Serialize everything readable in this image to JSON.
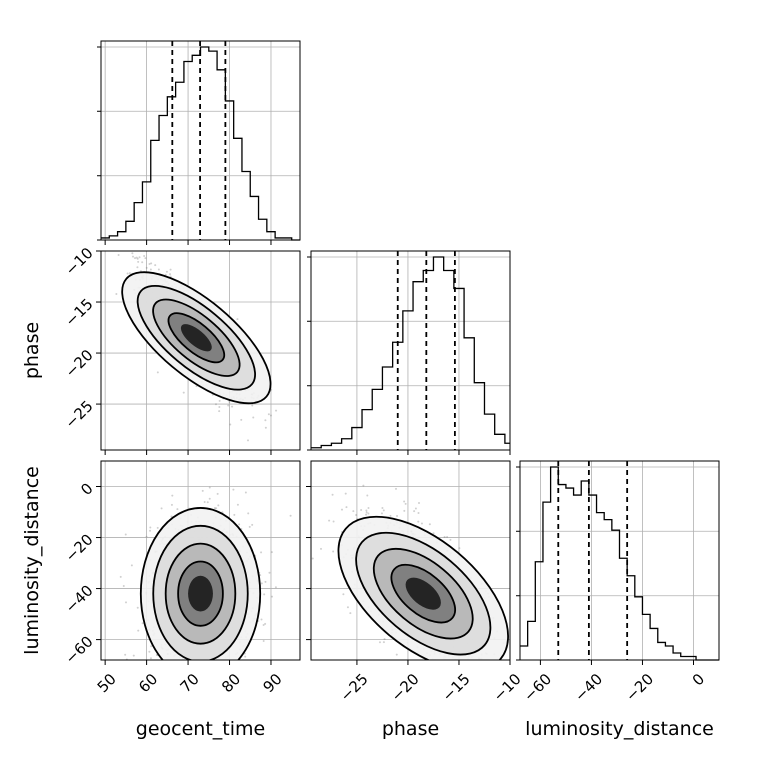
{
  "chart_data": {
    "type": "corner",
    "grid": true,
    "parameters": [
      {
        "name": "geocent_time",
        "label": "geocent_time",
        "range": [
          49,
          97
        ],
        "ticks": [
          50,
          60,
          70,
          80,
          90
        ],
        "quantiles": [
          66.2,
          72.9,
          79.0
        ]
      },
      {
        "name": "phase",
        "label": "phase",
        "range": [
          -29.5,
          -10
        ],
        "ticks": [
          -25,
          -20,
          -15,
          -10
        ],
        "quantiles": [
          -21.0,
          -18.2,
          -15.4
        ]
      },
      {
        "name": "luminosity_distance",
        "label": "luminosity_distance",
        "range": [
          -68,
          10
        ],
        "ticks": [
          -60,
          -40,
          -20,
          0
        ],
        "quantiles": [
          -53.0,
          -41.0,
          -26.0
        ]
      }
    ],
    "histograms": [
      {
        "parameter": "geocent_time",
        "bin_edges": [
          49,
          51,
          53,
          55,
          57,
          59,
          61,
          63,
          65,
          67,
          69,
          71,
          73,
          75,
          77,
          79,
          81,
          83,
          85,
          87,
          89,
          91,
          93,
          95,
          97
        ],
        "counts": [
          1,
          2,
          4,
          9,
          18,
          28,
          48,
          60,
          69,
          76,
          86,
          89,
          93,
          91,
          82,
          67,
          49,
          33,
          21,
          10,
          4,
          1,
          1,
          0
        ]
      },
      {
        "parameter": "phase",
        "bin_edges": [
          -29.5,
          -28.5,
          -27.5,
          -26.5,
          -25.5,
          -24.5,
          -23.5,
          -22.5,
          -21.5,
          -20.5,
          -19.5,
          -18.5,
          -17.5,
          -16.5,
          -15.5,
          -14.5,
          -13.5,
          -12.5,
          -11.5,
          -10.5,
          -10.0
        ],
        "counts": [
          1,
          2,
          3,
          5,
          10,
          18,
          27,
          37,
          48,
          62,
          75,
          80,
          86,
          80,
          72,
          50,
          30,
          16,
          7,
          3
        ]
      },
      {
        "parameter": "luminosity_distance",
        "bin_edges": [
          -68,
          -65,
          -62,
          -59,
          -56,
          -53,
          -50,
          -47,
          -44,
          -41,
          -38,
          -35,
          -32,
          -29,
          -26,
          -23,
          -20,
          -17,
          -14,
          -11,
          -8,
          -5,
          -2,
          1,
          4,
          7,
          10
        ],
        "counts": [
          4,
          11,
          28,
          45,
          55,
          50,
          49,
          47,
          51,
          47,
          42,
          40,
          37,
          29,
          24,
          18,
          13,
          9,
          5,
          4,
          2,
          1,
          1,
          0,
          0,
          0
        ]
      }
    ],
    "joint": [
      {
        "x": "geocent_time",
        "y": "phase",
        "center": [
          72,
          -18.5
        ],
        "spread": [
          6,
          3.0
        ],
        "correlation": -0.82
      },
      {
        "x": "geocent_time",
        "y": "luminosity_distance",
        "center": [
          73,
          -42
        ],
        "spread": [
          6,
          14
        ],
        "correlation": 0.0
      },
      {
        "x": "phase",
        "y": "luminosity_distance",
        "center": [
          -18.5,
          -42
        ],
        "spread": [
          3.0,
          14
        ],
        "correlation": -0.6
      }
    ]
  }
}
